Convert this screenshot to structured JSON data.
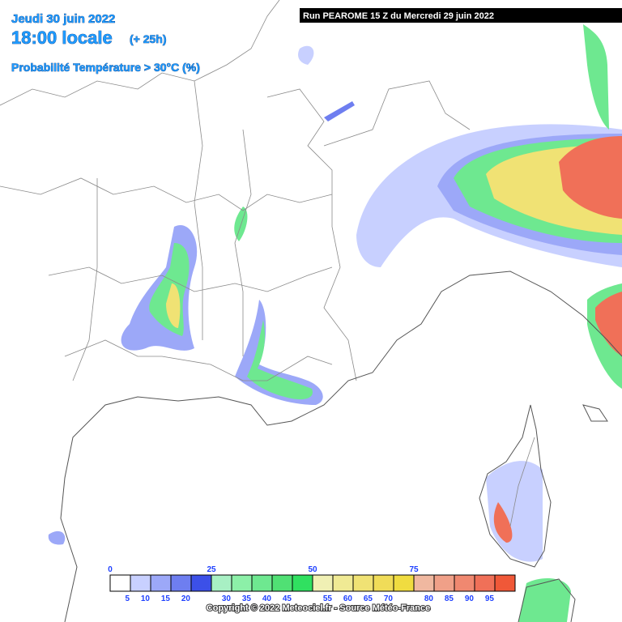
{
  "header": {
    "date": "Jeudi 30 juin 2022",
    "time": "18:00 locale",
    "lead": "(+ 25h)",
    "parameter": "Probabilité Température > 30°C (%)",
    "run": "Run PEAROME 15 Z du Mercredi 29 juin 2022"
  },
  "legend": {
    "ticks": [
      0,
      25,
      50,
      75
    ],
    "items": [
      {
        "color": "#ffffff",
        "upper": 5
      },
      {
        "color": "#c8d0ff",
        "upper": 10
      },
      {
        "color": "#9ca8f8",
        "upper": 15
      },
      {
        "color": "#6e7ef0",
        "upper": 20
      },
      {
        "color": "#3c50e8",
        "upper": null
      },
      {
        "color": "#a8f0c4",
        "upper": 30
      },
      {
        "color": "#8cf0a8",
        "upper": 35
      },
      {
        "color": "#6ee890",
        "upper": 40
      },
      {
        "color": "#50e074",
        "upper": 45
      },
      {
        "color": "#30e060",
        "upper": null
      },
      {
        "color": "#f0f0b4",
        "upper": 55
      },
      {
        "color": "#f0ea94",
        "upper": 60
      },
      {
        "color": "#f0e274",
        "upper": 65
      },
      {
        "color": "#f0dc58",
        "upper": 70
      },
      {
        "color": "#f0dc40",
        "upper": null
      },
      {
        "color": "#f0b8a0",
        "upper": 80
      },
      {
        "color": "#f0a088",
        "upper": 85
      },
      {
        "color": "#f08870",
        "upper": 90
      },
      {
        "color": "#f07058",
        "upper": 95
      },
      {
        "color": "#f05838",
        "upper": null
      }
    ]
  },
  "copyright": "Copyright © 2022 Meteociel.fr - Source Météo-France"
}
